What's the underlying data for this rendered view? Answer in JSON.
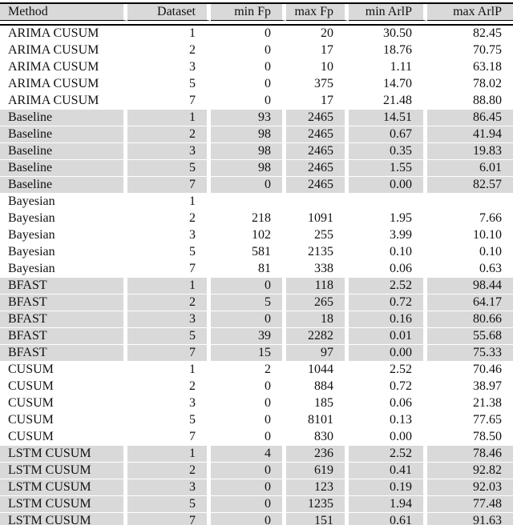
{
  "page": {
    "kind": "paper-results-table"
  },
  "colors": {
    "shade": "#d9d9d9",
    "rule": "#000000",
    "text": "#111111",
    "background": "#ffffff"
  },
  "table": {
    "columns": [
      {
        "key": "method",
        "label": "Method",
        "align": "left"
      },
      {
        "key": "dataset",
        "label": "Dataset",
        "align": "right"
      },
      {
        "key": "min_fp",
        "label": "min Fp",
        "align": "right"
      },
      {
        "key": "max_fp",
        "label": "max Fp",
        "align": "right"
      },
      {
        "key": "min_arlp",
        "label": "min ArlP",
        "align": "right"
      },
      {
        "key": "max_arlp",
        "label": "max ArlP",
        "align": "right"
      }
    ],
    "rows": [
      {
        "shaded": false,
        "method": "ARIMA CUSUM",
        "dataset": "1",
        "min_fp": "0",
        "max_fp": "20",
        "min_arlp": "30.50",
        "max_arlp": "82.45"
      },
      {
        "shaded": false,
        "method": "ARIMA CUSUM",
        "dataset": "2",
        "min_fp": "0",
        "max_fp": "17",
        "min_arlp": "18.76",
        "max_arlp": "70.75"
      },
      {
        "shaded": false,
        "method": "ARIMA CUSUM",
        "dataset": "3",
        "min_fp": "0",
        "max_fp": "10",
        "min_arlp": "1.11",
        "max_arlp": "63.18"
      },
      {
        "shaded": false,
        "method": "ARIMA CUSUM",
        "dataset": "5",
        "min_fp": "0",
        "max_fp": "375",
        "min_arlp": "14.70",
        "max_arlp": "78.02"
      },
      {
        "shaded": false,
        "method": "ARIMA CUSUM",
        "dataset": "7",
        "min_fp": "0",
        "max_fp": "17",
        "min_arlp": "21.48",
        "max_arlp": "88.80"
      },
      {
        "shaded": true,
        "method": "Baseline",
        "dataset": "1",
        "min_fp": "93",
        "max_fp": "2465",
        "min_arlp": "14.51",
        "max_arlp": "86.45"
      },
      {
        "shaded": true,
        "method": "Baseline",
        "dataset": "2",
        "min_fp": "98",
        "max_fp": "2465",
        "min_arlp": "0.67",
        "max_arlp": "41.94"
      },
      {
        "shaded": true,
        "method": "Baseline",
        "dataset": "3",
        "min_fp": "98",
        "max_fp": "2465",
        "min_arlp": "0.35",
        "max_arlp": "19.83"
      },
      {
        "shaded": true,
        "method": "Baseline",
        "dataset": "5",
        "min_fp": "98",
        "max_fp": "2465",
        "min_arlp": "1.55",
        "max_arlp": "6.01"
      },
      {
        "shaded": true,
        "method": "Baseline",
        "dataset": "7",
        "min_fp": "0",
        "max_fp": "2465",
        "min_arlp": "0.00",
        "max_arlp": "82.57"
      },
      {
        "shaded": false,
        "method": "Bayesian",
        "dataset": "1",
        "min_fp": "",
        "max_fp": "",
        "min_arlp": "",
        "max_arlp": ""
      },
      {
        "shaded": false,
        "method": "Bayesian",
        "dataset": "2",
        "min_fp": "218",
        "max_fp": "1091",
        "min_arlp": "1.95",
        "max_arlp": "7.66"
      },
      {
        "shaded": false,
        "method": "Bayesian",
        "dataset": "3",
        "min_fp": "102",
        "max_fp": "255",
        "min_arlp": "3.99",
        "max_arlp": "10.10"
      },
      {
        "shaded": false,
        "method": "Bayesian",
        "dataset": "5",
        "min_fp": "581",
        "max_fp": "2135",
        "min_arlp": "0.10",
        "max_arlp": "0.10"
      },
      {
        "shaded": false,
        "method": "Bayesian",
        "dataset": "7",
        "min_fp": "81",
        "max_fp": "338",
        "min_arlp": "0.06",
        "max_arlp": "0.63"
      },
      {
        "shaded": true,
        "method": "BFAST",
        "dataset": "1",
        "min_fp": "0",
        "max_fp": "118",
        "min_arlp": "2.52",
        "max_arlp": "98.44"
      },
      {
        "shaded": true,
        "method": "BFAST",
        "dataset": "2",
        "min_fp": "5",
        "max_fp": "265",
        "min_arlp": "0.72",
        "max_arlp": "64.17"
      },
      {
        "shaded": true,
        "method": "BFAST",
        "dataset": "3",
        "min_fp": "0",
        "max_fp": "18",
        "min_arlp": "0.16",
        "max_arlp": "80.66"
      },
      {
        "shaded": true,
        "method": "BFAST",
        "dataset": "5",
        "min_fp": "39",
        "max_fp": "2282",
        "min_arlp": "0.01",
        "max_arlp": "55.68"
      },
      {
        "shaded": true,
        "method": "BFAST",
        "dataset": "7",
        "min_fp": "15",
        "max_fp": "97",
        "min_arlp": "0.00",
        "max_arlp": "75.33"
      },
      {
        "shaded": false,
        "method": "CUSUM",
        "dataset": "1",
        "min_fp": "2",
        "max_fp": "1044",
        "min_arlp": "2.52",
        "max_arlp": "70.46"
      },
      {
        "shaded": false,
        "method": "CUSUM",
        "dataset": "2",
        "min_fp": "0",
        "max_fp": "884",
        "min_arlp": "0.72",
        "max_arlp": "38.97"
      },
      {
        "shaded": false,
        "method": "CUSUM",
        "dataset": "3",
        "min_fp": "0",
        "max_fp": "185",
        "min_arlp": "0.06",
        "max_arlp": "21.38"
      },
      {
        "shaded": false,
        "method": "CUSUM",
        "dataset": "5",
        "min_fp": "0",
        "max_fp": "8101",
        "min_arlp": "0.13",
        "max_arlp": "77.65"
      },
      {
        "shaded": false,
        "method": "CUSUM",
        "dataset": "7",
        "min_fp": "0",
        "max_fp": "830",
        "min_arlp": "0.00",
        "max_arlp": "78.50"
      },
      {
        "shaded": true,
        "method": "LSTM CUSUM",
        "dataset": "1",
        "min_fp": "4",
        "max_fp": "236",
        "min_arlp": "2.52",
        "max_arlp": "78.46"
      },
      {
        "shaded": true,
        "method": "LSTM CUSUM",
        "dataset": "2",
        "min_fp": "0",
        "max_fp": "619",
        "min_arlp": "0.41",
        "max_arlp": "92.82"
      },
      {
        "shaded": true,
        "method": "LSTM CUSUM",
        "dataset": "3",
        "min_fp": "0",
        "max_fp": "123",
        "min_arlp": "0.19",
        "max_arlp": "92.03"
      },
      {
        "shaded": true,
        "method": "LSTM CUSUM",
        "dataset": "5",
        "min_fp": "0",
        "max_fp": "1235",
        "min_arlp": "1.94",
        "max_arlp": "77.48"
      },
      {
        "shaded": true,
        "method": "LSTM CUSUM",
        "dataset": "7",
        "min_fp": "0",
        "max_fp": "151",
        "min_arlp": "0.61",
        "max_arlp": "91.63"
      }
    ]
  }
}
